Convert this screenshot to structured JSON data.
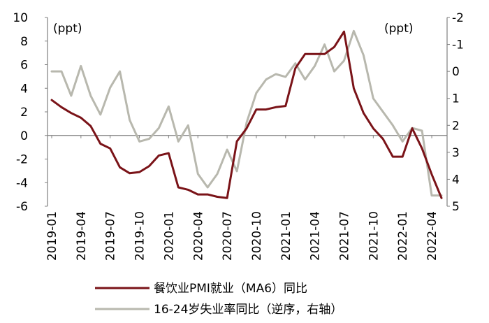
{
  "chart_data": {
    "type": "line",
    "left_axis_unit": "(ppt)",
    "right_axis_unit": "(ppt)",
    "left_ylim": [
      -6,
      10
    ],
    "right_ylim": [
      5,
      -2
    ],
    "left_ticks": [
      "10",
      "8",
      "6",
      "4",
      "2",
      "0",
      "-2",
      "-4",
      "-6"
    ],
    "left_tick_values": [
      10,
      8,
      6,
      4,
      2,
      0,
      -2,
      -4,
      -6
    ],
    "right_ticks": [
      "-2",
      "-1",
      "0",
      "1",
      "2",
      "3",
      "4",
      "5"
    ],
    "right_tick_values": [
      -2,
      -1,
      0,
      1,
      2,
      3,
      4,
      5
    ],
    "x_tick_labels": [
      "2019-01",
      "2019-04",
      "2019-07",
      "2019-10",
      "2020-01",
      "2020-04",
      "2020-07",
      "2020-10",
      "2021-01",
      "2021-04",
      "2021-07",
      "2021-10",
      "2022-01",
      "2022-04"
    ],
    "x_tick_indices": [
      0,
      3,
      6,
      9,
      12,
      15,
      18,
      21,
      24,
      27,
      30,
      33,
      36,
      39
    ],
    "months": [
      "2019-01",
      "2019-02",
      "2019-03",
      "2019-04",
      "2019-05",
      "2019-06",
      "2019-07",
      "2019-08",
      "2019-09",
      "2019-10",
      "2019-11",
      "2019-12",
      "2020-01",
      "2020-02",
      "2020-03",
      "2020-04",
      "2020-05",
      "2020-06",
      "2020-07",
      "2020-08",
      "2020-09",
      "2020-10",
      "2020-11",
      "2020-12",
      "2021-01",
      "2021-02",
      "2021-03",
      "2021-04",
      "2021-05",
      "2021-06",
      "2021-07",
      "2021-08",
      "2021-09",
      "2021-10",
      "2021-11",
      "2021-12",
      "2022-01",
      "2022-02",
      "2022-03",
      "2022-04",
      "2022-05"
    ],
    "series": [
      {
        "name": "餐饮业PMI就业（MA6）同比",
        "axis": "left",
        "color": "#7a1318",
        "values": [
          3.0,
          2.4,
          1.9,
          1.5,
          0.8,
          -0.7,
          -1.1,
          -2.7,
          -3.2,
          -3.1,
          -2.6,
          -1.7,
          -1.5,
          -4.4,
          -4.6,
          -5.0,
          -5.0,
          -5.2,
          -5.3,
          -0.5,
          0.6,
          2.2,
          2.2,
          2.4,
          2.5,
          5.7,
          6.9,
          6.9,
          6.9,
          7.5,
          8.8,
          4.0,
          1.9,
          0.6,
          -0.3,
          -1.8,
          -1.8,
          0.6,
          -1.1,
          -3.3,
          -5.3
        ]
      },
      {
        "name": "16-24岁失业率同比（逆序，右轴）",
        "axis": "right",
        "color": "#b8b8ae",
        "values": [
          0.0,
          0.0,
          0.9,
          -0.2,
          0.9,
          1.6,
          0.6,
          0.0,
          1.8,
          2.6,
          2.5,
          2.1,
          1.3,
          2.6,
          2.0,
          3.8,
          4.3,
          3.8,
          2.9,
          3.7,
          1.9,
          0.8,
          0.3,
          0.1,
          0.2,
          -0.3,
          0.3,
          -0.2,
          -1.0,
          0.0,
          -0.4,
          -1.5,
          -0.6,
          1.0,
          1.5,
          2.0,
          2.6,
          2.1,
          2.2,
          4.6,
          4.6
        ]
      }
    ]
  }
}
